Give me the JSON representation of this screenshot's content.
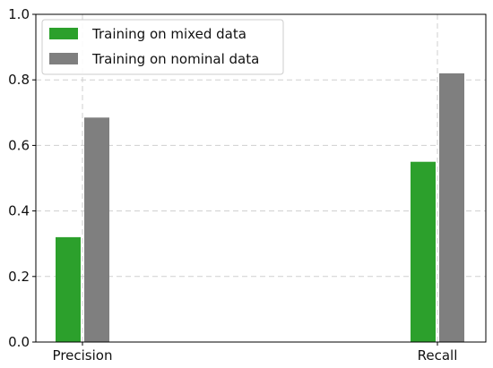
{
  "chart_data": {
    "type": "bar",
    "categories": [
      "Precision",
      "Recall"
    ],
    "series": [
      {
        "name": "Training on mixed data",
        "values": [
          0.32,
          0.55
        ],
        "color": "#2ca02c"
      },
      {
        "name": "Training on nominal data",
        "values": [
          0.685,
          0.82
        ],
        "color": "#7f7f7f"
      }
    ],
    "title": "",
    "xlabel": "",
    "ylabel": "",
    "ylim": [
      0,
      1.0
    ],
    "yticks": [
      "0.0",
      "0.2",
      "0.4",
      "0.6",
      "0.8",
      "1.0"
    ],
    "grid": true,
    "legend_position": "top-left"
  }
}
